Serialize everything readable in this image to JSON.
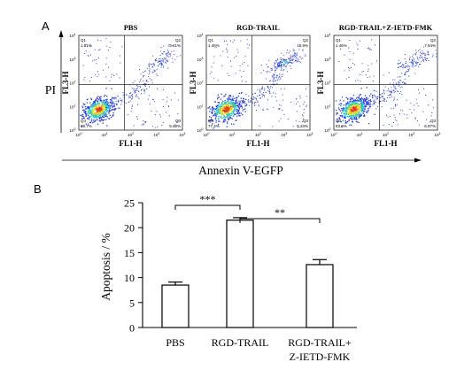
{
  "panel_a": {
    "label": "A",
    "y_axis_title": "PI",
    "x_axis_title": "Annexin V-EGFP",
    "plots": [
      {
        "title": "PBS",
        "y_label": "FL3-H",
        "x_label": "FL1-H",
        "quadrants": {
          "q1": {
            "name": "Q1",
            "value": "1.51%"
          },
          "q2": {
            "name": "Q2",
            "value": "3.41%"
          },
          "q3": {
            "name": "Q3",
            "value": "5.40%"
          },
          "q4": {
            "name": "Q4",
            "value": "89.7%"
          }
        }
      },
      {
        "title": "RGD-TRAIL",
        "y_label": "FL3-H",
        "x_label": "FL1-H",
        "quadrants": {
          "q1": {
            "name": "Q1",
            "value": "1.45%"
          },
          "q2": {
            "name": "Q2",
            "value": "15.9%"
          },
          "q3": {
            "name": "Q3",
            "value": "5.33%"
          },
          "q4": {
            "name": "Q4",
            "value": "77.4%"
          }
        }
      },
      {
        "title": "RGD-TRAIL+Z-IETD-FMK",
        "y_label": "FL3-H",
        "x_label": "FL1-H",
        "quadrants": {
          "q1": {
            "name": "Q1",
            "value": "1.46%"
          },
          "q2": {
            "name": "Q2",
            "value": "7.94%"
          },
          "q3": {
            "name": "Q3",
            "value": "6.97%"
          },
          "q4": {
            "name": "Q4",
            "value": "83.6%"
          }
        }
      }
    ]
  },
  "panel_b": {
    "label": "B"
  },
  "chart_data": {
    "type": "bar",
    "categories": [
      "PBS",
      "RGD-TRAIL",
      "RGD-TRAIL+\nZ-IETD-FMK"
    ],
    "category_lines": [
      [
        "PBS"
      ],
      [
        "RGD-TRAIL"
      ],
      [
        "RGD-TRAIL+",
        "Z-IETD-FMK"
      ]
    ],
    "values": [
      8.5,
      21.5,
      12.6
    ],
    "errors": [
      0.6,
      0.5,
      1.0
    ],
    "ylabel": "Apoptosis / %",
    "xlabel": "",
    "ylim": [
      0,
      25
    ],
    "yticks": [
      0,
      5,
      10,
      15,
      20,
      25
    ],
    "significance": [
      {
        "from": 0,
        "to": 1,
        "label": "***"
      },
      {
        "from": 1,
        "to": 2,
        "label": "**"
      }
    ],
    "bar_fill": "#ffffff",
    "bar_stroke": "#000000"
  },
  "colors": {
    "density_low": "#2a3fd6",
    "density_mid": "#27c9c4",
    "density_high": "#e8d023",
    "density_peak": "#e23616",
    "axis": "#000000"
  }
}
